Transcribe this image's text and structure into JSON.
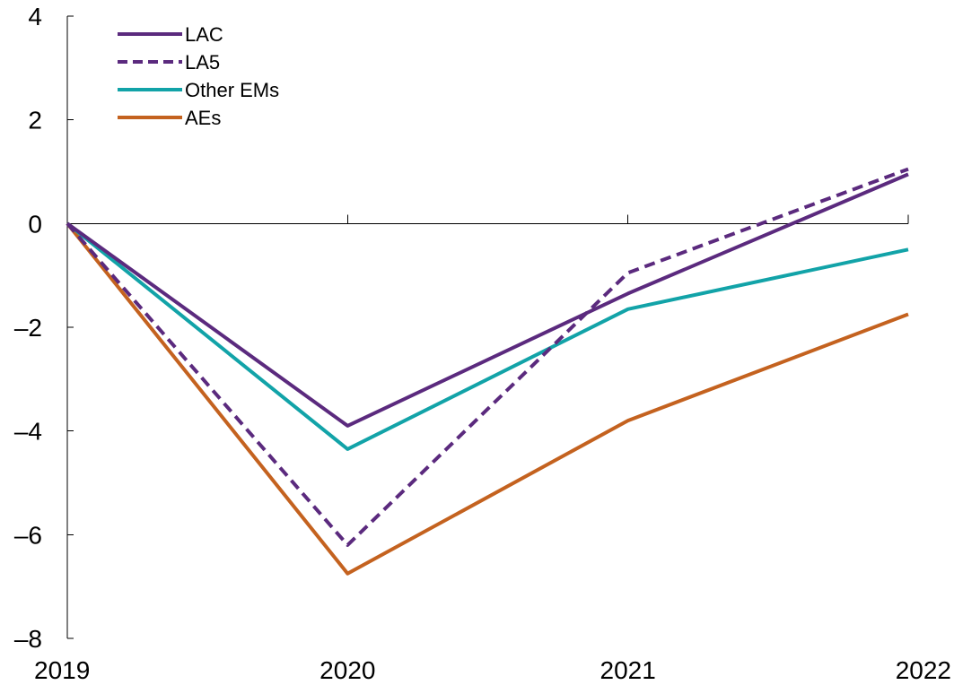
{
  "chart_data": {
    "type": "line",
    "title": "",
    "xlabel": "",
    "ylabel": "",
    "x": [
      "2019",
      "2020",
      "2021",
      "2022"
    ],
    "ylim": [
      -8,
      4
    ],
    "yticks": [
      4,
      2,
      0,
      -2,
      -4,
      -6,
      -8
    ],
    "ytick_labels": [
      "4",
      "2",
      "0",
      "–2",
      "–4",
      "–6",
      "–8"
    ],
    "grid": false,
    "legend_position": "top-left",
    "series": [
      {
        "name": "LAC",
        "color": "#5b2a7e",
        "dash": "solid",
        "values": [
          0,
          -3.9,
          -1.35,
          0.95
        ]
      },
      {
        "name": "LA5",
        "color": "#5b2a7e",
        "dash": "dashed",
        "values": [
          0,
          -6.2,
          -0.95,
          1.05
        ]
      },
      {
        "name": "Other EMs",
        "color": "#12a3a8",
        "dash": "solid",
        "values": [
          0,
          -4.35,
          -1.65,
          -0.5
        ]
      },
      {
        "name": "AEs",
        "color": "#c4621f",
        "dash": "solid",
        "values": [
          0,
          -6.75,
          -3.8,
          -1.75
        ]
      }
    ]
  }
}
